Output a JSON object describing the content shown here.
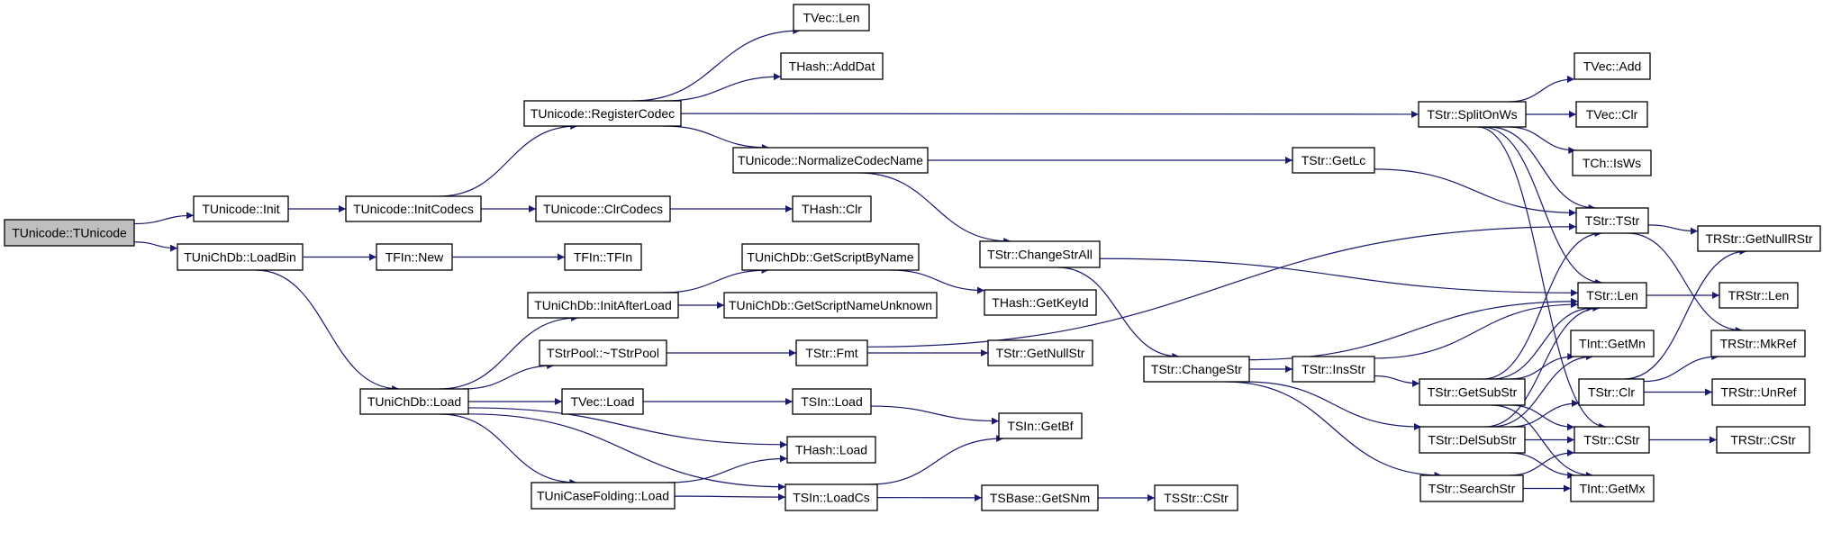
{
  "colors": {
    "edge": "#191970",
    "root_fill": "#bfbfbf",
    "node_fill": "#ffffff"
  },
  "root": "TUnicode::TUnicode",
  "nodes": [
    {
      "id": "TUnicode::TUnicode",
      "label": "TUnicode::TUnicode"
    },
    {
      "id": "TUnicode::Init",
      "label": "TUnicode::Init"
    },
    {
      "id": "TUniChDb::LoadBin",
      "label": "TUniChDb::LoadBin"
    },
    {
      "id": "TUnicode::InitCodecs",
      "label": "TUnicode::InitCodecs"
    },
    {
      "id": "TUnicode::ClrCodecs",
      "label": "TUnicode::ClrCodecs"
    },
    {
      "id": "THash::Clr",
      "label": "THash::Clr"
    },
    {
      "id": "TUnicode::RegisterCodec",
      "label": "TUnicode::RegisterCodec"
    },
    {
      "id": "TVec::Len",
      "label": "TVec::Len"
    },
    {
      "id": "THash::AddDat",
      "label": "THash::AddDat"
    },
    {
      "id": "TUnicode::NormalizeCodecName",
      "label": "TUnicode::NormalizeCodecName"
    },
    {
      "id": "TFIn::New",
      "label": "TFIn::New"
    },
    {
      "id": "TFIn::TFIn",
      "label": "TFIn::TFIn"
    },
    {
      "id": "TUniChDb::GetScriptByName",
      "label": "TUniChDb::GetScriptByName"
    },
    {
      "id": "TUniChDb::InitAfterLoad",
      "label": "TUniChDb::InitAfterLoad"
    },
    {
      "id": "TUniChDb::GetScriptNameUnknown",
      "label": "TUniChDb::GetScriptNameUnknown"
    },
    {
      "id": "TStrPool::~TStrPool",
      "label": "TStrPool::~TStrPool"
    },
    {
      "id": "TStr::Fmt",
      "label": "TStr::Fmt"
    },
    {
      "id": "TUniChDb::Load",
      "label": "TUniChDb::Load"
    },
    {
      "id": "TVec::Load",
      "label": "TVec::Load"
    },
    {
      "id": "TSIn::Load",
      "label": "TSIn::Load"
    },
    {
      "id": "THash::Load",
      "label": "THash::Load"
    },
    {
      "id": "TUniCaseFolding::Load",
      "label": "TUniCaseFolding::Load"
    },
    {
      "id": "TSIn::LoadCs",
      "label": "TSIn::LoadCs"
    },
    {
      "id": "TStr::SplitOnWs",
      "label": "TStr::SplitOnWs"
    },
    {
      "id": "TVec::Add",
      "label": "TVec::Add"
    },
    {
      "id": "TVec::Clr",
      "label": "TVec::Clr"
    },
    {
      "id": "TCh::IsWs",
      "label": "TCh::IsWs"
    },
    {
      "id": "TStr::GetLc",
      "label": "TStr::GetLc"
    },
    {
      "id": "TStr::TStr",
      "label": "TStr::TStr"
    },
    {
      "id": "TRStr::GetNullRStr",
      "label": "TRStr::GetNullRStr"
    },
    {
      "id": "TStr::ChangeStrAll",
      "label": "TStr::ChangeStrAll"
    },
    {
      "id": "THash::GetKeyId",
      "label": "THash::GetKeyId"
    },
    {
      "id": "TStr::GetNullStr",
      "label": "TStr::GetNullStr"
    },
    {
      "id": "TSIn::GetBf",
      "label": "TSIn::GetBf"
    },
    {
      "id": "TSBase::GetSNm",
      "label": "TSBase::GetSNm"
    },
    {
      "id": "TSStr::CStr",
      "label": "TSStr::CStr"
    },
    {
      "id": "TStr::ChangeStr",
      "label": "TStr::ChangeStr"
    },
    {
      "id": "TStr::InsStr",
      "label": "TStr::InsStr"
    },
    {
      "id": "TStr::Len",
      "label": "TStr::Len"
    },
    {
      "id": "TRStr::Len",
      "label": "TRStr::Len"
    },
    {
      "id": "TInt::GetMn",
      "label": "TInt::GetMn"
    },
    {
      "id": "TRStr::MkRef",
      "label": "TRStr::MkRef"
    },
    {
      "id": "TStr::GetSubStr",
      "label": "TStr::GetSubStr"
    },
    {
      "id": "TStr::Clr",
      "label": "TStr::Clr"
    },
    {
      "id": "TRStr::UnRef",
      "label": "TRStr::UnRef"
    },
    {
      "id": "TStr::DelSubStr",
      "label": "TStr::DelSubStr"
    },
    {
      "id": "TStr::CStr",
      "label": "TStr::CStr"
    },
    {
      "id": "TRStr::CStr",
      "label": "TRStr::CStr"
    },
    {
      "id": "TStr::SearchStr",
      "label": "TStr::SearchStr"
    },
    {
      "id": "TInt::GetMx",
      "label": "TInt::GetMx"
    }
  ],
  "edges": [
    [
      "TUnicode::TUnicode",
      "TUnicode::Init"
    ],
    [
      "TUnicode::TUnicode",
      "TUniChDb::LoadBin"
    ],
    [
      "TUnicode::Init",
      "TUnicode::InitCodecs"
    ],
    [
      "TUnicode::InitCodecs",
      "TUnicode::RegisterCodec"
    ],
    [
      "TUnicode::InitCodecs",
      "TUnicode::ClrCodecs"
    ],
    [
      "TUnicode::ClrCodecs",
      "THash::Clr"
    ],
    [
      "TUnicode::RegisterCodec",
      "TVec::Len"
    ],
    [
      "TUnicode::RegisterCodec",
      "THash::AddDat"
    ],
    [
      "TUnicode::RegisterCodec",
      "TStr::SplitOnWs"
    ],
    [
      "TUnicode::RegisterCodec",
      "TUnicode::NormalizeCodecName"
    ],
    [
      "TUnicode::NormalizeCodecName",
      "TStr::GetLc"
    ],
    [
      "TUnicode::NormalizeCodecName",
      "TStr::ChangeStrAll"
    ],
    [
      "TUniChDb::LoadBin",
      "TFIn::New"
    ],
    [
      "TUniChDb::LoadBin",
      "TUniChDb::Load"
    ],
    [
      "TFIn::New",
      "TFIn::TFIn"
    ],
    [
      "TUniChDb::Load",
      "TUniChDb::InitAfterLoad"
    ],
    [
      "TUniChDb::Load",
      "TStrPool::~TStrPool"
    ],
    [
      "TUniChDb::Load",
      "TVec::Load"
    ],
    [
      "TUniChDb::Load",
      "THash::Load"
    ],
    [
      "TUniChDb::Load",
      "TUniCaseFolding::Load"
    ],
    [
      "TUniChDb::Load",
      "TSIn::LoadCs"
    ],
    [
      "TUniChDb::InitAfterLoad",
      "TUniChDb::GetScriptByName"
    ],
    [
      "TUniChDb::InitAfterLoad",
      "TUniChDb::GetScriptNameUnknown"
    ],
    [
      "TUniChDb::GetScriptByName",
      "THash::GetKeyId"
    ],
    [
      "TStrPool::~TStrPool",
      "TStr::Fmt"
    ],
    [
      "TStr::Fmt",
      "TStr::TStr"
    ],
    [
      "TStr::Fmt",
      "TStr::GetNullStr"
    ],
    [
      "TVec::Load",
      "TSIn::Load"
    ],
    [
      "TSIn::Load",
      "TSIn::GetBf"
    ],
    [
      "TUniCaseFolding::Load",
      "THash::Load"
    ],
    [
      "TUniCaseFolding::Load",
      "TSIn::LoadCs"
    ],
    [
      "TSIn::LoadCs",
      "TSIn::GetBf"
    ],
    [
      "TSIn::LoadCs",
      "TSBase::GetSNm"
    ],
    [
      "TSBase::GetSNm",
      "TSStr::CStr"
    ],
    [
      "TStr::ChangeStrAll",
      "TStr::Len"
    ],
    [
      "TStr::ChangeStrAll",
      "TStr::ChangeStr"
    ],
    [
      "TStr::ChangeStr",
      "TStr::Len"
    ],
    [
      "TStr::ChangeStr",
      "TStr::InsStr"
    ],
    [
      "TStr::ChangeStr",
      "TStr::DelSubStr"
    ],
    [
      "TStr::ChangeStr",
      "TStr::SearchStr"
    ],
    [
      "TStr::InsStr",
      "TStr::Len"
    ],
    [
      "TStr::InsStr",
      "TStr::GetSubStr"
    ],
    [
      "TStr::GetLc",
      "TStr::TStr"
    ],
    [
      "TStr::SplitOnWs",
      "TVec::Add"
    ],
    [
      "TStr::SplitOnWs",
      "TVec::Clr"
    ],
    [
      "TStr::SplitOnWs",
      "TCh::IsWs"
    ],
    [
      "TStr::SplitOnWs",
      "TStr::TStr"
    ],
    [
      "TStr::SplitOnWs",
      "TStr::Len"
    ],
    [
      "TStr::SplitOnWs",
      "TStr::CStr"
    ],
    [
      "TStr::TStr",
      "TRStr::GetNullRStr"
    ],
    [
      "TStr::TStr",
      "TRStr::MkRef"
    ],
    [
      "TStr::Len",
      "TRStr::Len"
    ],
    [
      "TStr::GetSubStr",
      "TStr::TStr"
    ],
    [
      "TStr::GetSubStr",
      "TStr::Len"
    ],
    [
      "TStr::GetSubStr",
      "TInt::GetMn"
    ],
    [
      "TStr::GetSubStr",
      "TStr::CStr"
    ],
    [
      "TStr::GetSubStr",
      "TInt::GetMx"
    ],
    [
      "TStr::DelSubStr",
      "TStr::Len"
    ],
    [
      "TStr::DelSubStr",
      "TInt::GetMn"
    ],
    [
      "TStr::DelSubStr",
      "TStr::Clr"
    ],
    [
      "TStr::DelSubStr",
      "TStr::CStr"
    ],
    [
      "TStr::DelSubStr",
      "TInt::GetMx"
    ],
    [
      "TStr::Clr",
      "TRStr::GetNullRStr"
    ],
    [
      "TStr::Clr",
      "TRStr::MkRef"
    ],
    [
      "TStr::Clr",
      "TRStr::UnRef"
    ],
    [
      "TStr::CStr",
      "TRStr::CStr"
    ],
    [
      "TStr::SearchStr",
      "TStr::CStr"
    ],
    [
      "TStr::SearchStr",
      "TInt::GetMx"
    ]
  ]
}
